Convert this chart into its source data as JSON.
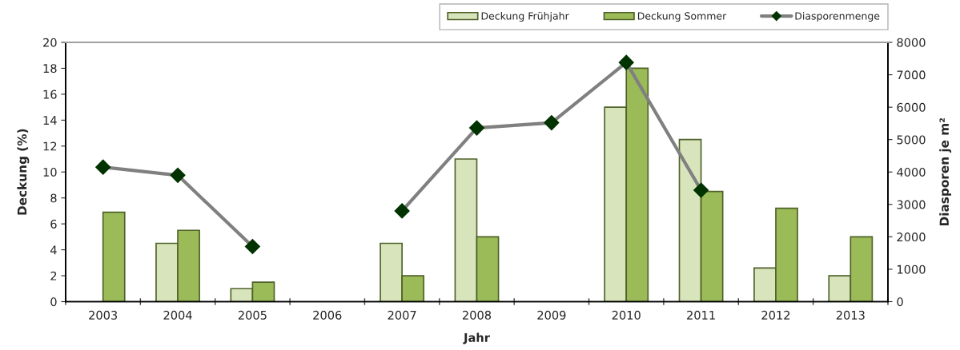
{
  "chart_data": {
    "type": "bar",
    "xlabel": "Jahr",
    "ylabel": "Deckung (%)",
    "y2label": "Diasporen je m²",
    "categories": [
      "2003",
      "2004",
      "2005",
      "2006",
      "2007",
      "2008",
      "2009",
      "2010",
      "2011",
      "2012",
      "2013"
    ],
    "series": [
      {
        "name": "Deckung Frühjahr",
        "color": "#d8e4bc",
        "values": [
          null,
          4.5,
          1.0,
          null,
          4.5,
          11,
          null,
          15,
          12.5,
          2.6,
          2.0
        ]
      },
      {
        "name": "Deckung Sommer",
        "color": "#9bbb59",
        "values": [
          6.9,
          5.5,
          1.5,
          null,
          2.0,
          5.0,
          null,
          18,
          8.5,
          7.2,
          5.0
        ]
      },
      {
        "name": "Diasporenmenge",
        "type": "line",
        "axis": "y2",
        "color": "#808080",
        "marker": "diamond",
        "line_style": "solid",
        "values": [
          4150,
          3900,
          1700,
          null,
          2800,
          5360,
          5520,
          7380,
          3440,
          null,
          null
        ]
      }
    ],
    "ylim": [
      0,
      20
    ],
    "yticks": [
      0,
      2,
      4,
      6,
      8,
      10,
      12,
      14,
      16,
      18,
      20
    ],
    "y2lim": [
      0,
      8000
    ],
    "y2ticks": [
      0,
      1000,
      2000,
      3000,
      4000,
      5000,
      6000,
      7000,
      8000
    ],
    "legend": "top right",
    "grid": false
  }
}
